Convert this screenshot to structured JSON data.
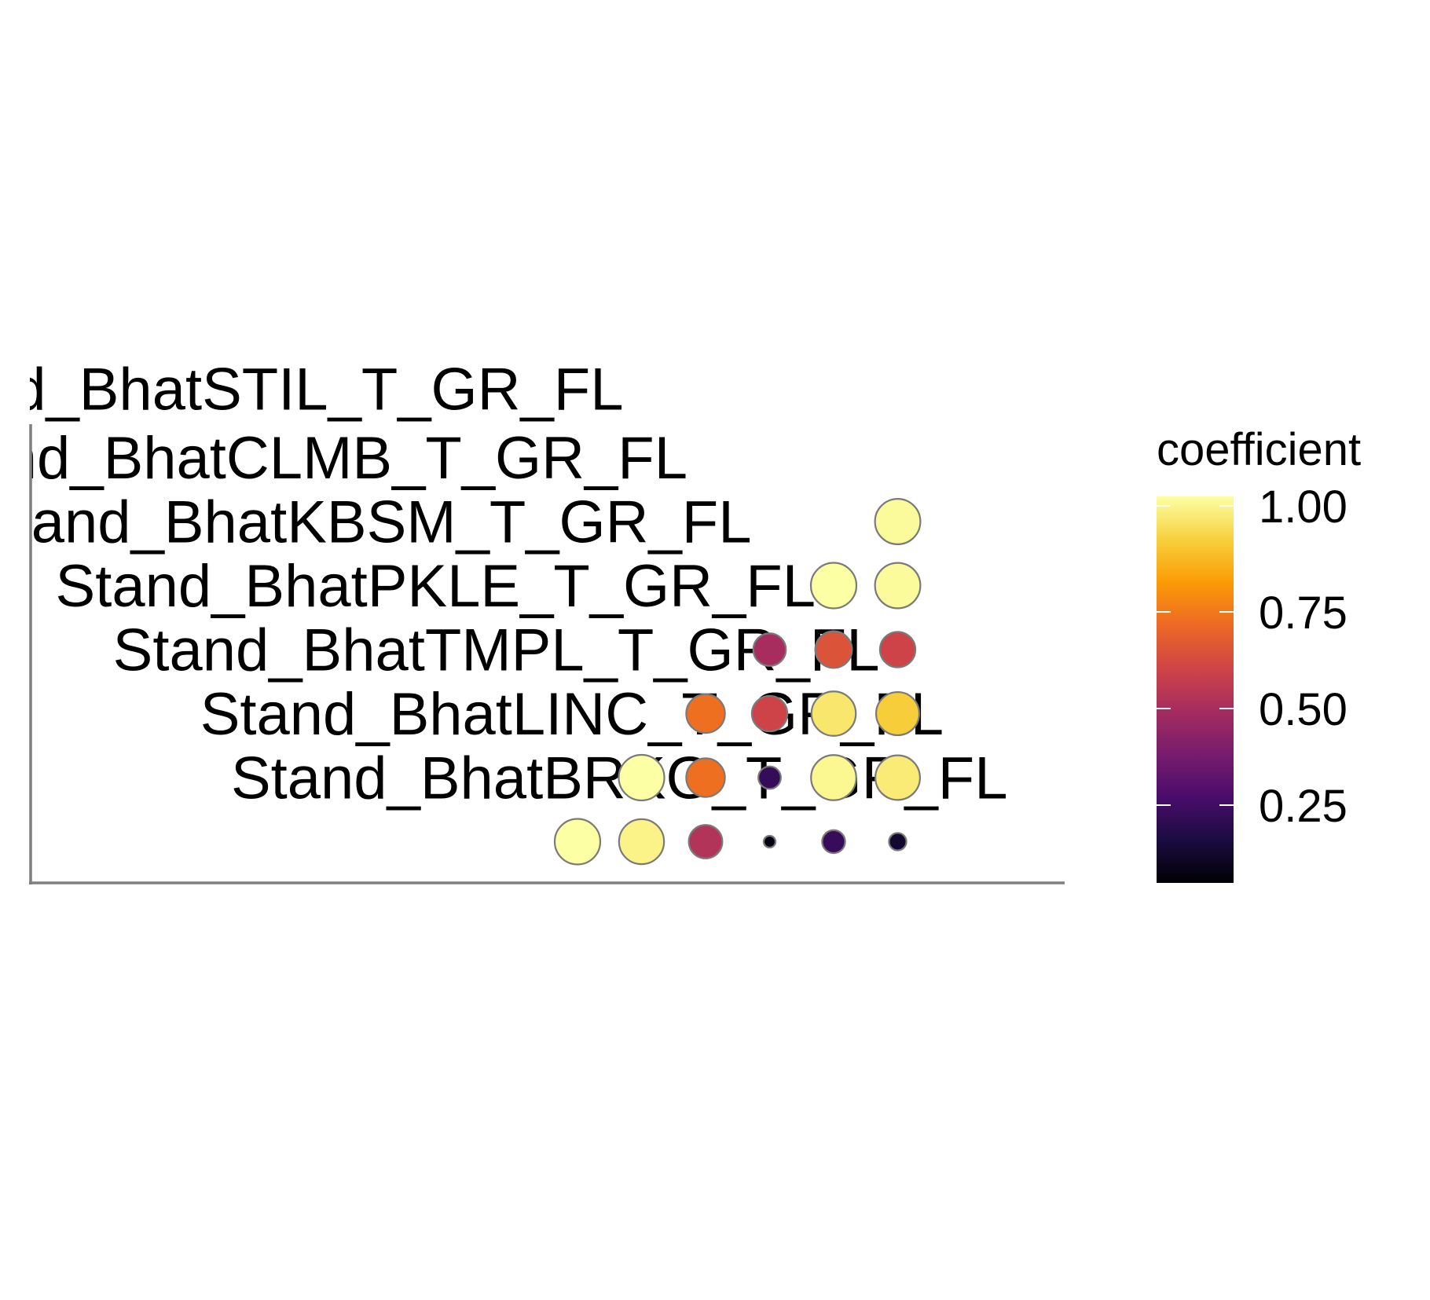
{
  "chart_data": {
    "type": "heatmap",
    "title": "",
    "xlabel": "",
    "ylabel": "",
    "rows": [
      "Stand_BhatSTIL_T_GR_FL",
      "Stand_BhatCLMB_T_GR_FL",
      "Stand_BhatKBSM_T_GR_FL",
      "Stand_BhatPKLE_T_GR_FL",
      "Stand_BhatTMPL_T_GR_FL",
      "Stand_BhatLINC_T_GR_FL",
      "Stand_BhatBRKG_T_GR_FL"
    ],
    "cells": [
      {
        "row": 1,
        "col": 6,
        "value": 0.99
      },
      {
        "row": 2,
        "col": 5,
        "value": 1.0
      },
      {
        "row": 2,
        "col": 6,
        "value": 0.99
      },
      {
        "row": 3,
        "col": 4,
        "value": 0.45
      },
      {
        "row": 3,
        "col": 5,
        "value": 0.6
      },
      {
        "row": 3,
        "col": 6,
        "value": 0.55
      },
      {
        "row": 4,
        "col": 3,
        "value": 0.68
      },
      {
        "row": 4,
        "col": 4,
        "value": 0.55
      },
      {
        "row": 4,
        "col": 5,
        "value": 0.94
      },
      {
        "row": 4,
        "col": 6,
        "value": 0.88
      },
      {
        "row": 5,
        "col": 2,
        "value": 1.0
      },
      {
        "row": 5,
        "col": 3,
        "value": 0.68
      },
      {
        "row": 5,
        "col": 4,
        "value": 0.17
      },
      {
        "row": 5,
        "col": 5,
        "value": 0.98
      },
      {
        "row": 5,
        "col": 6,
        "value": 0.95
      },
      {
        "row": 6,
        "col": 1,
        "value": 1.0
      },
      {
        "row": 6,
        "col": 2,
        "value": 0.97
      },
      {
        "row": 6,
        "col": 3,
        "value": 0.48
      },
      {
        "row": 6,
        "col": 4,
        "value": 0.02
      },
      {
        "row": 6,
        "col": 5,
        "value": 0.18
      },
      {
        "row": 6,
        "col": 6,
        "value": 0.08
      }
    ],
    "color_scale": {
      "name": "inferno",
      "title": "coefficient",
      "min": 0,
      "max": 1,
      "ticks": [
        1.0,
        0.75,
        0.5,
        0.25
      ],
      "tick_labels": [
        "1.00",
        "0.75",
        "0.50",
        "0.25"
      ],
      "stops": [
        "#000004",
        "#1b0c41",
        "#4a0c6b",
        "#781c6d",
        "#a52c60",
        "#cf4446",
        "#ed6925",
        "#fb9b06",
        "#f7d13d",
        "#fcffa4"
      ]
    },
    "size_encodes": "value",
    "grid": false,
    "legend_position": "right"
  }
}
